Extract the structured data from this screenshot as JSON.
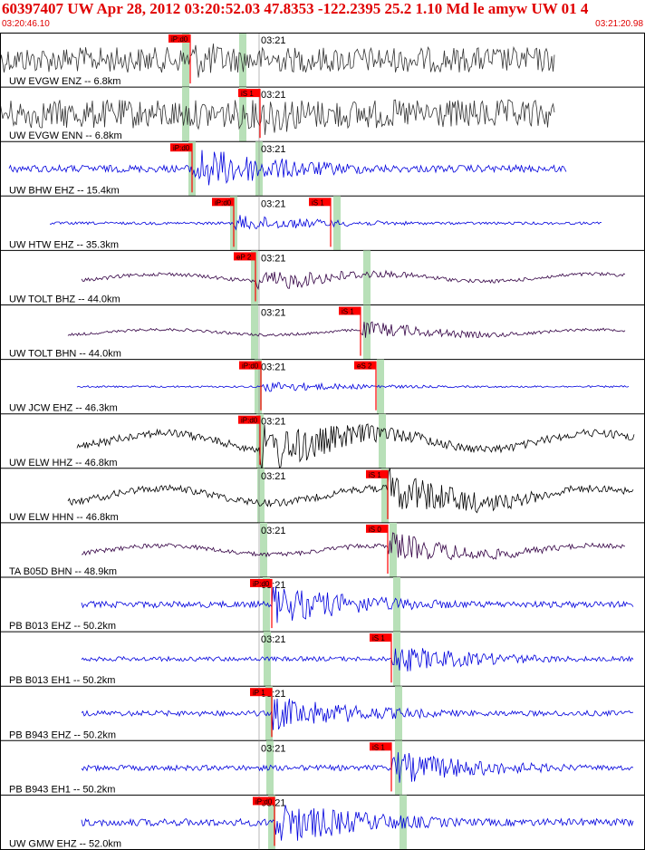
{
  "header": {
    "title": "60397407 UW Apr 28, 2012 03:20:52.03   47.8353 -122.2395 25.2 1.10 Md le amyw UW 01   4",
    "start_time": "03:20:46.10",
    "end_time": "03:21:20.98"
  },
  "colors": {
    "header_text": "#e00000",
    "pick_box": "#ff0000",
    "phase_band": "#b8e0b8",
    "trace_gray": "#333333",
    "trace_blue": "#0000dd",
    "trace_purple": "#330044",
    "trace_black": "#000000"
  },
  "chart_data": {
    "type": "line",
    "title": "60397407 UW Apr 28, 2012 03:20:52.03   47.8353 -122.2395 25.2 1.10 Md le amyw UW 01   4",
    "x_range": [
      "03:20:46.10",
      "03:21:20.98"
    ],
    "minute_tick_label": "03:21",
    "series": [
      {
        "name": "UW EVGW ENZ -- 6.8km",
        "color": "gray",
        "picks": [
          "iP:d0"
        ],
        "amplitude": "high-noise"
      },
      {
        "name": "UW EVGW ENN -- 6.8km",
        "color": "gray",
        "picks": [
          "iS 1"
        ],
        "amplitude": "high-noise"
      },
      {
        "name": "UW BHW EHZ -- 15.4km",
        "color": "blue",
        "picks": [
          "iP:d0"
        ],
        "amplitude": "medium"
      },
      {
        "name": "UW HTW EHZ -- 35.3km",
        "color": "blue",
        "picks": [
          "iP:d0",
          "iS 1"
        ],
        "amplitude": "low"
      },
      {
        "name": "UW TOLT BHZ -- 44.0km",
        "color": "purple",
        "picks": [
          "eP 2"
        ],
        "amplitude": "low"
      },
      {
        "name": "UW TOLT BHN -- 44.0km",
        "color": "purple",
        "picks": [
          "iS 1"
        ],
        "amplitude": "low"
      },
      {
        "name": "UW JCW EHZ -- 46.3km",
        "color": "blue",
        "picks": [
          "iP:d0",
          "eS 2"
        ],
        "amplitude": "low"
      },
      {
        "name": "UW ELW HHZ -- 46.8km",
        "color": "black",
        "picks": [
          "iP:d0"
        ],
        "amplitude": "high"
      },
      {
        "name": "UW ELW HHN -- 46.8km",
        "color": "black",
        "picks": [
          "iS 1"
        ],
        "amplitude": "high"
      },
      {
        "name": "TA B05D BHN -- 48.9km",
        "color": "purple",
        "picks": [
          "iS 0"
        ],
        "amplitude": "medium"
      },
      {
        "name": "PB B013 EHZ -- 50.2km",
        "color": "blue",
        "picks": [
          "iP:d0"
        ],
        "amplitude": "medium"
      },
      {
        "name": "PB B013 EH1 -- 50.2km",
        "color": "blue",
        "picks": [
          "iS 1"
        ],
        "amplitude": "medium"
      },
      {
        "name": "PB B943 EHZ -- 50.2km",
        "color": "blue",
        "picks": [
          "iP 1"
        ],
        "amplitude": "medium"
      },
      {
        "name": "PB B943 EH1 -- 50.2km",
        "color": "blue",
        "picks": [
          "iS 1"
        ],
        "amplitude": "medium"
      },
      {
        "name": "UW GMW EHZ -- 52.0km",
        "color": "blue",
        "picks": [
          "iP:d0"
        ],
        "amplitude": "high"
      }
    ]
  }
}
